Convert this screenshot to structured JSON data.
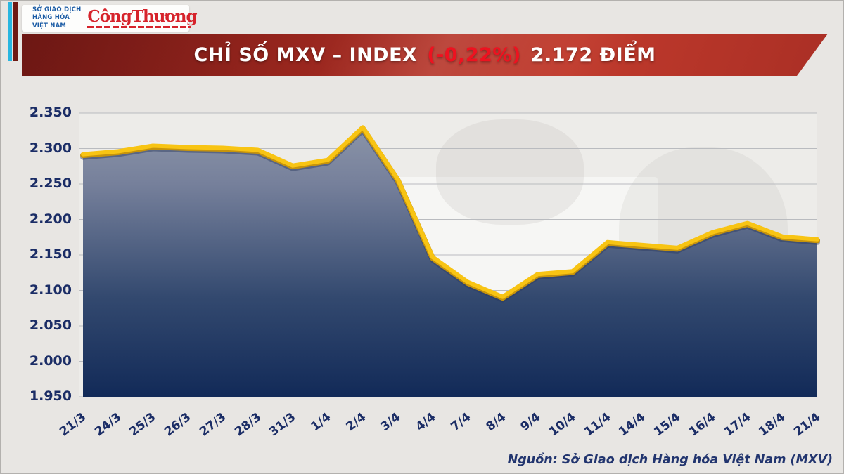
{
  "header": {
    "mxv_logo": {
      "lines": [
        "SỞ GIAO DỊCH",
        "HÀNG HÓA",
        "VIỆT NAM"
      ]
    },
    "congthuong_logo": "CôngThương"
  },
  "banner": {
    "title": "CHỈ SỐ MXV – INDEX",
    "change": "(-0,22%)",
    "value": "2.172 ĐIỂM"
  },
  "chart_data": {
    "type": "area",
    "title": "CHỈ SỐ MXV – INDEX (-0,22%) 2.172 ĐIỂM",
    "categories": [
      "21/3",
      "24/3",
      "25/3",
      "26/3",
      "27/3",
      "28/3",
      "31/3",
      "1/4",
      "2/4",
      "3/4",
      "4/4",
      "7/4",
      "8/4",
      "9/4",
      "10/4",
      "11/4",
      "14/4",
      "15/4",
      "16/4",
      "17/4",
      "18/4",
      "21/4"
    ],
    "values": [
      2.292,
      2.296,
      2.304,
      2.302,
      2.301,
      2.298,
      2.276,
      2.284,
      2.33,
      2.257,
      2.147,
      2.112,
      2.091,
      2.123,
      2.127,
      2.168,
      2.164,
      2.16,
      2.182,
      2.195,
      2.176,
      2.172
    ],
    "xlabel": "",
    "ylabel": "",
    "ylim": [
      1.95,
      2.35
    ],
    "ytick_step": 0.05,
    "ytick_labels": [
      "2.350",
      "2.300",
      "2.250",
      "2.200",
      "2.150",
      "2.100",
      "2.050",
      "2.000",
      "1.950"
    ],
    "grid": true,
    "legend": "none",
    "line_color": "#F8C413",
    "line_edge_color": "#C7940B",
    "fill_gradient": [
      "#9099AB",
      "#76809B",
      "#33496F",
      "#122A58"
    ],
    "grid_color": "#B9BBBF",
    "tick_label_color": "#1B2D66"
  },
  "source": "Nguồn: Sở Giao dịch Hàng hóa Việt Nam (MXV)"
}
